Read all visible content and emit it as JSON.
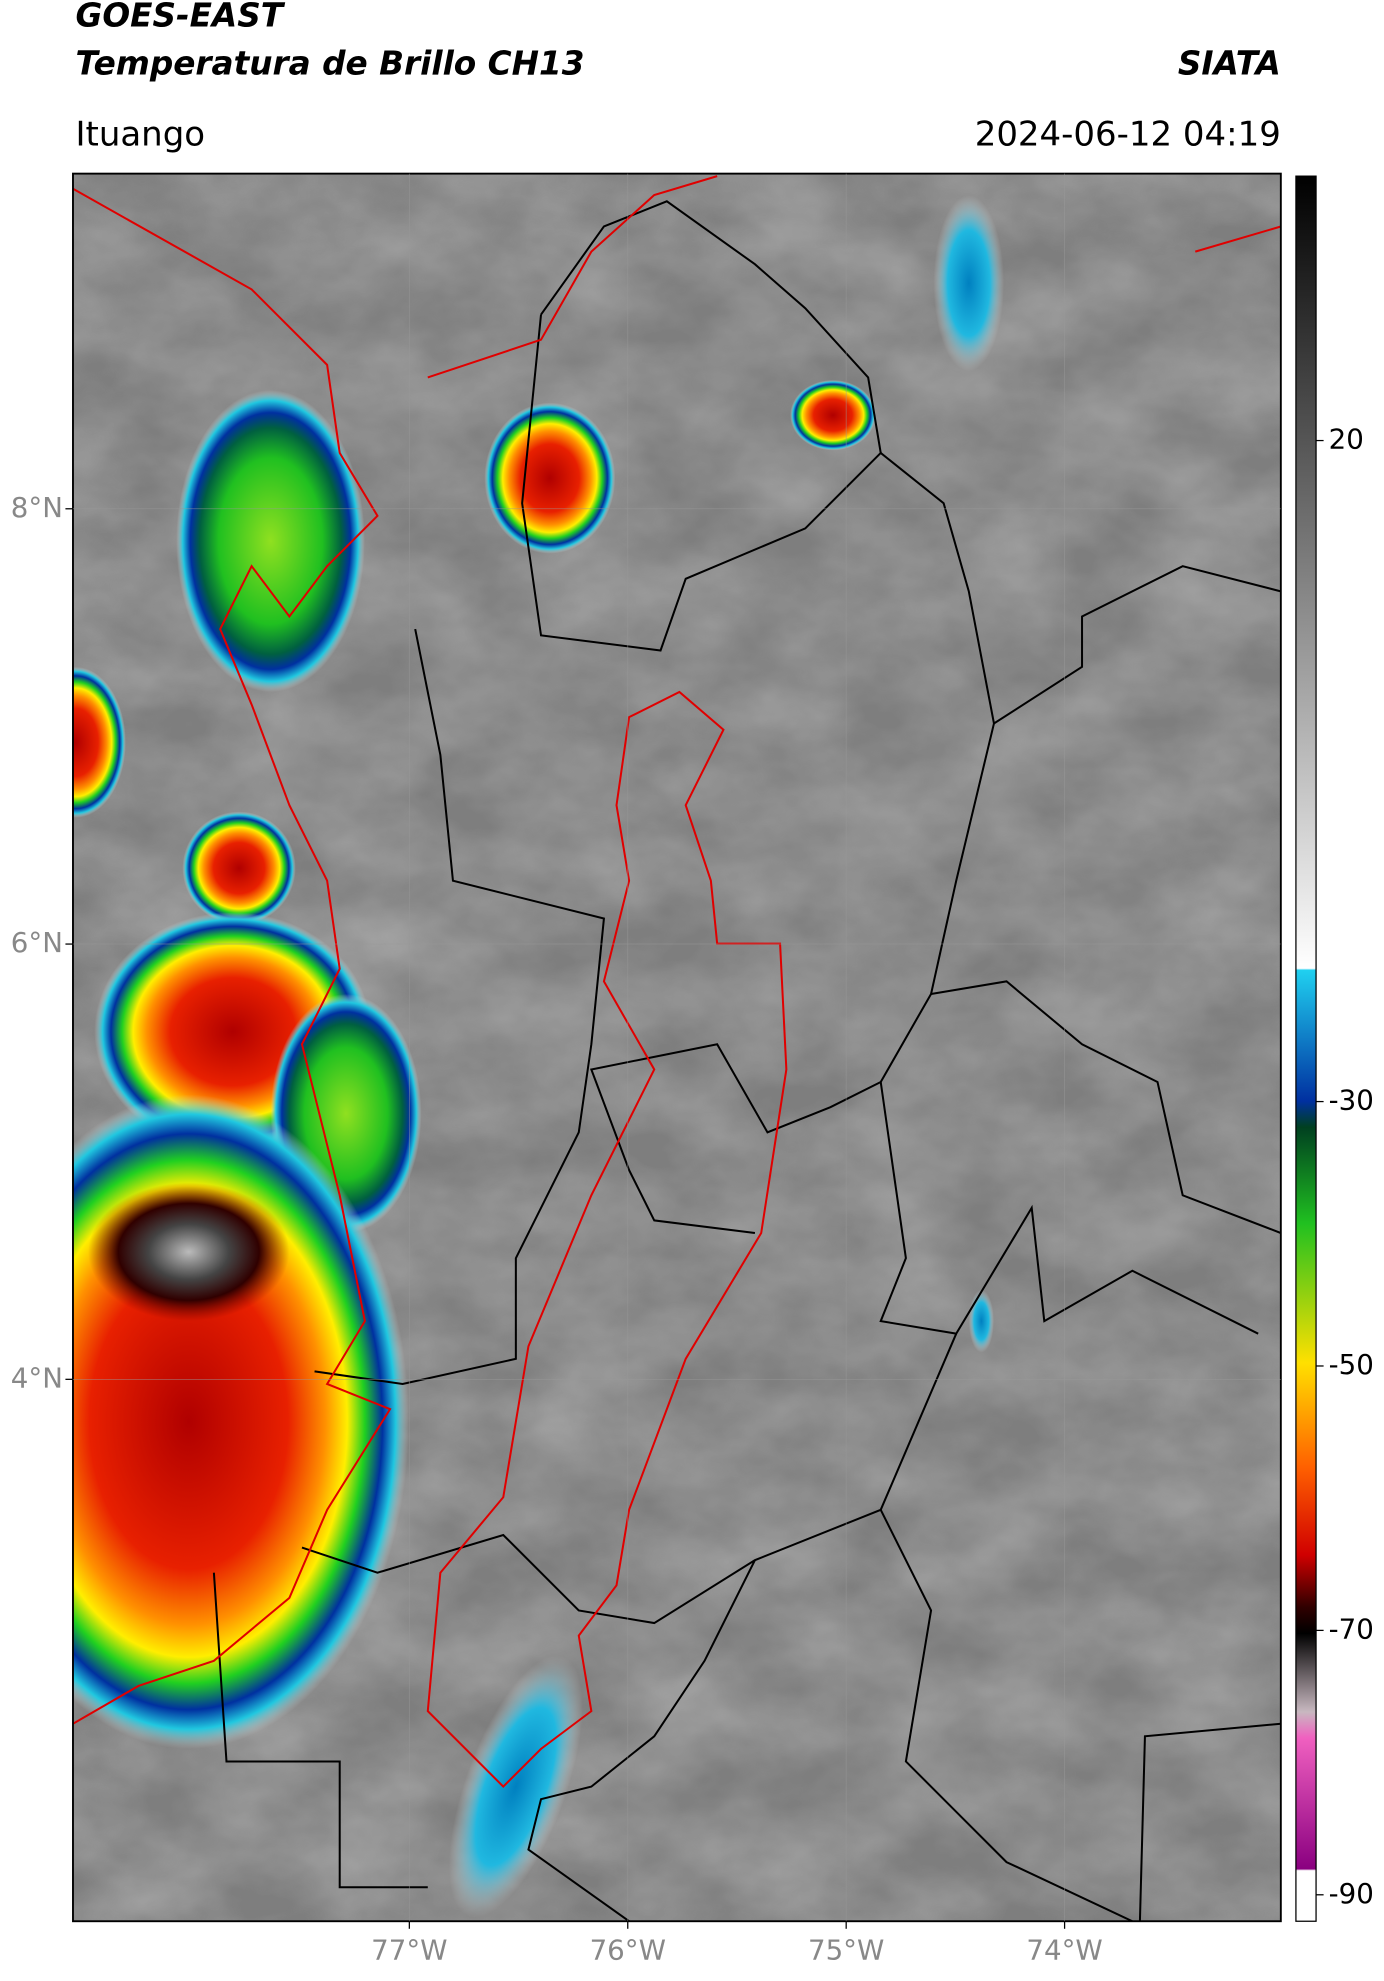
{
  "header": {
    "title": "GOES-EAST",
    "subtitle": "Temperatura de Brillo CH13",
    "brand": "SIATA",
    "location": "Ituango",
    "datetime": "2024-06-12 04:19"
  },
  "map": {
    "lonlim": [
      -78.54,
      -73.01
    ],
    "latlim": [
      1.51,
      9.54
    ],
    "lonticks": [
      {
        "value": -77,
        "label": "77°W"
      },
      {
        "value": -76,
        "label": "76°W"
      },
      {
        "value": -75,
        "label": "75°W"
      },
      {
        "value": -74,
        "label": "74°W"
      }
    ],
    "latticks": [
      {
        "value": 8,
        "label": "8°N"
      },
      {
        "value": 6,
        "label": "6°N"
      },
      {
        "value": 4,
        "label": "4°N"
      }
    ],
    "grid": true
  },
  "colorbar": {
    "clim": [
      -92,
      40
    ],
    "ticks": [
      20,
      -30,
      -50,
      -70,
      -90
    ]
  }
}
